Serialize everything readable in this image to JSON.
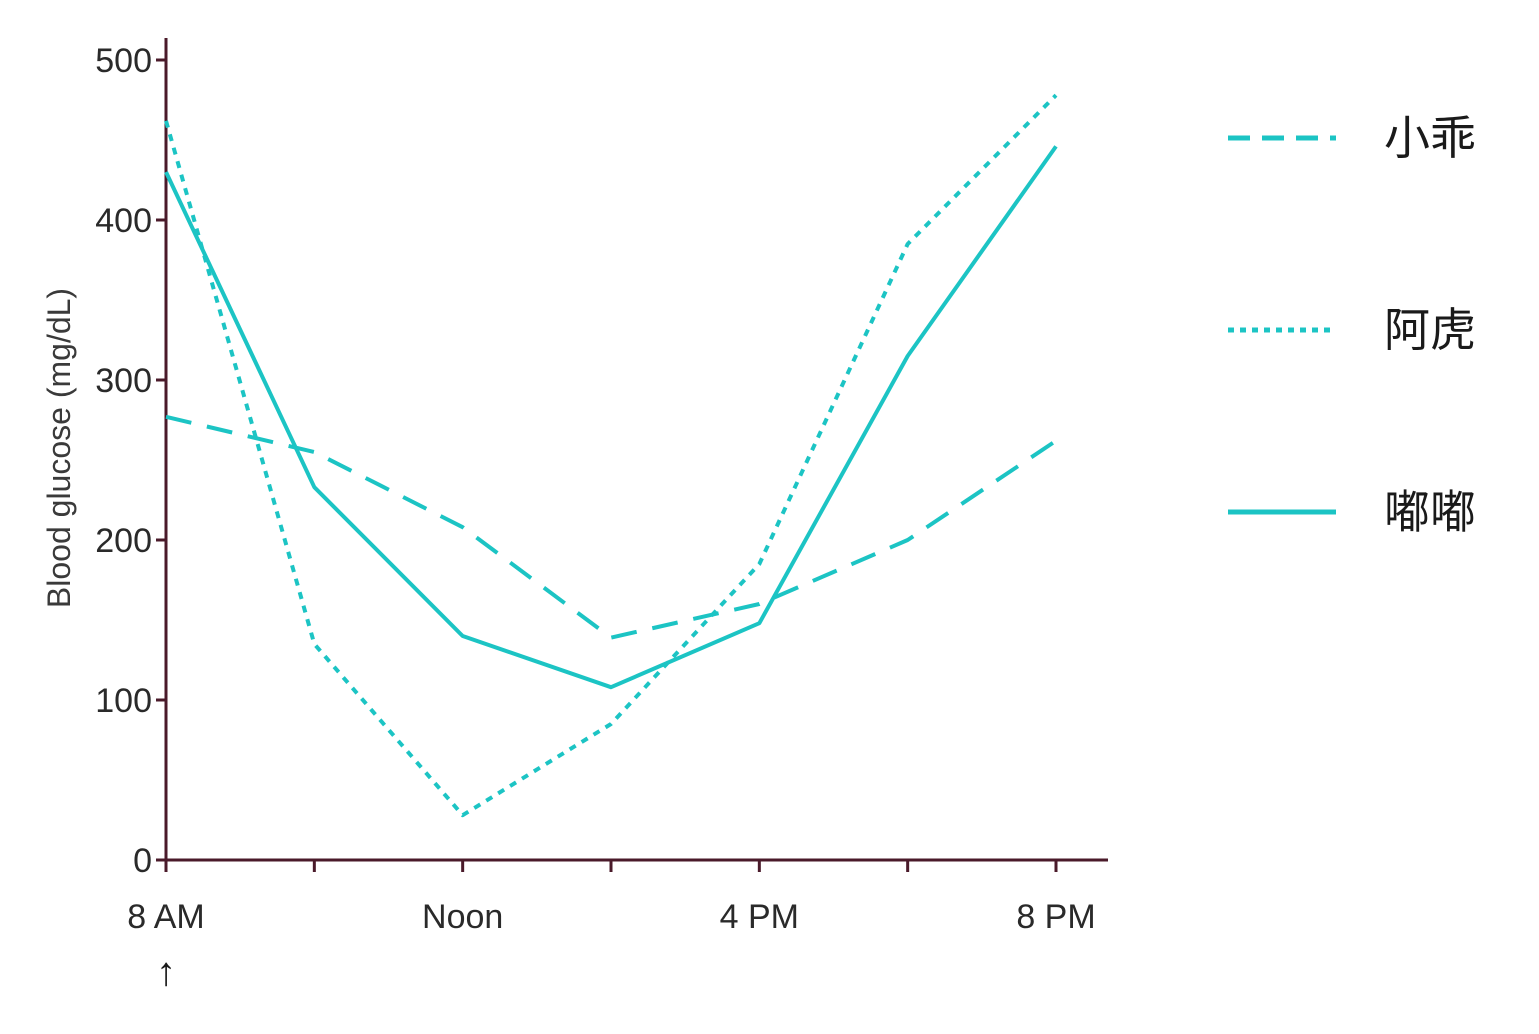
{
  "chart_data": {
    "type": "line",
    "title": "",
    "xlabel": "",
    "ylabel": "Blood glucose (mg/dL)",
    "ylim": [
      0,
      500
    ],
    "yticks": [
      0,
      100,
      200,
      300,
      400,
      500
    ],
    "xlim": [
      0,
      12
    ],
    "xticks": [
      0,
      2,
      4,
      6,
      8,
      10,
      12
    ],
    "xtick_labels": [
      {
        "x": 0,
        "label": "8 AM"
      },
      {
        "x": 4,
        "label": "Noon"
      },
      {
        "x": 8,
        "label": "4 PM"
      },
      {
        "x": 12,
        "label": "8 PM"
      }
    ],
    "start_marker": {
      "x": 0,
      "symbol": "↑"
    },
    "grid": false,
    "legend": "right",
    "line_color": "#1cc4c4",
    "axis_color": "#4a1a2a",
    "x": [
      0,
      2,
      4,
      6,
      8,
      10,
      12
    ],
    "series": [
      {
        "name": "小乖",
        "style": "dashed",
        "values": [
          277,
          255,
          208,
          139,
          160,
          200,
          262
        ]
      },
      {
        "name": "阿虎",
        "style": "dotted",
        "values": [
          462,
          135,
          28,
          85,
          185,
          385,
          478
        ]
      },
      {
        "name": "嘟嘟",
        "style": "solid",
        "values": [
          430,
          233,
          140,
          108,
          148,
          315,
          446
        ]
      }
    ]
  }
}
